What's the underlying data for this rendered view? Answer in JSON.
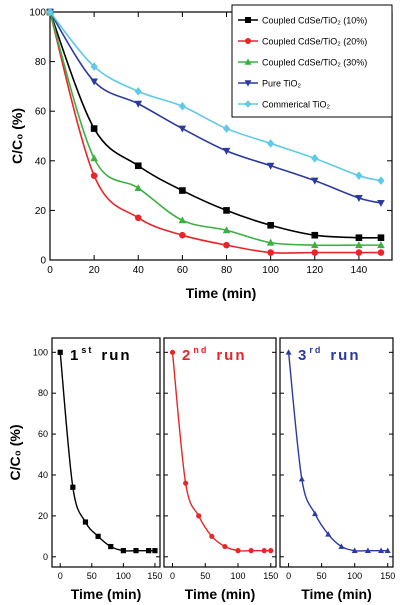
{
  "chart_data": [
    {
      "type": "line",
      "xlabel": "Time (min)",
      "ylabel": "C/C₀ (%)",
      "xlim": [
        0,
        155
      ],
      "ylim": [
        0,
        100
      ],
      "x_ticks": [
        0,
        20,
        40,
        60,
        80,
        100,
        120,
        140
      ],
      "y_ticks": [
        0,
        20,
        40,
        60,
        80,
        100
      ],
      "legend_placement": "top-right",
      "series": [
        {
          "name": "Coupled CdSe/TiO₂ (10%)",
          "color": "#000000",
          "marker": "square",
          "x": [
            0,
            20,
            40,
            60,
            80,
            100,
            120,
            140,
            150
          ],
          "y": [
            100,
            53,
            38,
            28,
            20,
            14,
            10,
            9,
            9
          ]
        },
        {
          "name": "Coupled CdSe/TiO₂ (20%)",
          "color": "#e8262a",
          "marker": "circle",
          "x": [
            0,
            20,
            40,
            60,
            80,
            100,
            120,
            140,
            150
          ],
          "y": [
            100,
            34,
            17,
            10,
            6,
            3,
            3,
            3,
            3
          ]
        },
        {
          "name": "Coupled CdSe/TiO₂ (30%)",
          "color": "#3cb043",
          "marker": "triangle-up",
          "x": [
            0,
            20,
            40,
            60,
            80,
            100,
            120,
            140,
            150
          ],
          "y": [
            100,
            41,
            29,
            16,
            12,
            7,
            6,
            6,
            6
          ]
        },
        {
          "name": "Pure TiO₂",
          "color": "#2b3a9e",
          "marker": "triangle-down",
          "x": [
            0,
            20,
            40,
            60,
            80,
            100,
            120,
            140,
            150
          ],
          "y": [
            100,
            72,
            63,
            53,
            44,
            38,
            32,
            25,
            23
          ]
        },
        {
          "name": "Commerical TiO₂",
          "color": "#5fc9e6",
          "marker": "diamond",
          "x": [
            0,
            20,
            40,
            60,
            80,
            100,
            120,
            140,
            150
          ],
          "y": [
            100,
            78,
            68,
            62,
            53,
            47,
            41,
            34,
            32
          ]
        }
      ]
    },
    {
      "type": "line",
      "xlabel": "Time (min)",
      "ylabel": "C/C₀ (%)",
      "ylim": [
        -5,
        107
      ],
      "y_ticks": [
        0,
        20,
        40,
        60,
        80,
        100
      ],
      "x_ticks": [
        0,
        50,
        100,
        150
      ],
      "panels": [
        {
          "run": "1",
          "sup": "st",
          "label": "run",
          "color": "#000000",
          "marker": "square",
          "x": [
            0,
            20,
            40,
            60,
            80,
            100,
            120,
            140,
            150
          ],
          "y": [
            100,
            34,
            17,
            10,
            5,
            3,
            3,
            3,
            3
          ]
        },
        {
          "run": "2",
          "sup": "nd",
          "label": "run",
          "color": "#e8262a",
          "marker": "circle",
          "x": [
            0,
            20,
            40,
            60,
            80,
            100,
            120,
            140,
            150
          ],
          "y": [
            100,
            36,
            20,
            10,
            5,
            3,
            3,
            3,
            3
          ]
        },
        {
          "run": "3",
          "sup": "rd",
          "label": "run",
          "color": "#2b3a9e",
          "marker": "triangle-up",
          "x": [
            0,
            20,
            40,
            60,
            80,
            100,
            120,
            140,
            150
          ],
          "y": [
            100,
            38,
            21,
            11,
            5,
            3,
            3,
            3,
            3
          ]
        }
      ]
    }
  ]
}
